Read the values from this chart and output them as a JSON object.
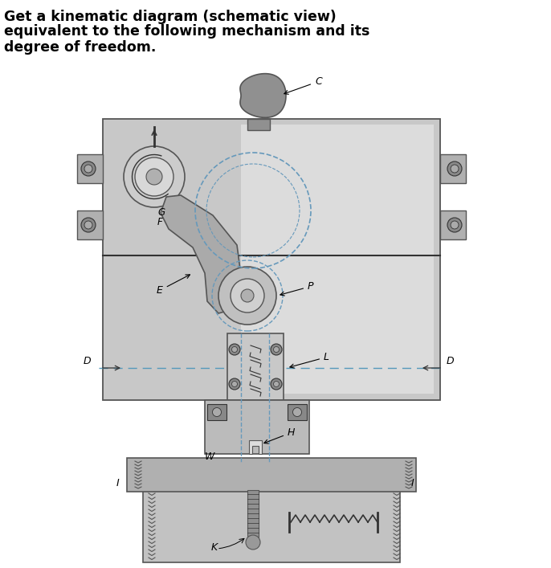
{
  "title_line1": "Get a kinematic diagram (schematic view)",
  "title_line2": "equivalent to the following mechanism and its",
  "title_line3": "degree of freedom.",
  "bg_color": "#ffffff",
  "blue_dashed": "#6699bb",
  "frame_gray": "#c8c8c8",
  "light_gray": "#d8d8d8",
  "mid_gray": "#b0b0b0",
  "dark_gray": "#888888",
  "edge_color": "#555555",
  "very_dark": "#333333"
}
